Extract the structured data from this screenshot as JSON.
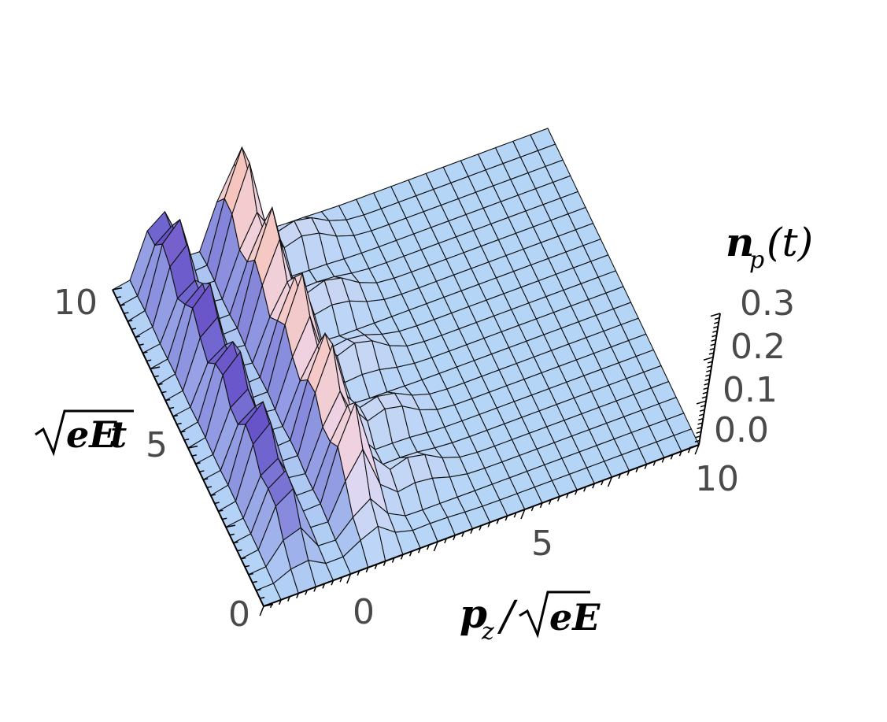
{
  "chart_data": {
    "type": "surface3d",
    "title": "",
    "x_axis": {
      "label": {
        "main": "p",
        "sub": "z",
        "sep": "/",
        "radicand": "eE"
      },
      "range": [
        -2.5,
        10
      ],
      "ticks": [
        0,
        5,
        10
      ]
    },
    "y_axis": {
      "label": {
        "radicand": "eE",
        "tail": "t"
      },
      "range": [
        0,
        10
      ],
      "ticks": [
        0,
        5,
        10
      ]
    },
    "z_axis": {
      "label": {
        "main": "n",
        "sub": "p",
        "tail": "(t)"
      },
      "range": [
        0,
        0.3
      ],
      "ticks": [
        "0.0",
        "0.1",
        "0.2",
        "0.3"
      ]
    },
    "grid_resolution": [
      25,
      20
    ],
    "ridges": [
      {
        "center_p": 0.9,
        "width": 0.55,
        "peak_n": 0.3
      },
      {
        "center_p": -1.2,
        "width": 0.45,
        "peak_n": 0.25
      }
    ],
    "grid": true,
    "colors": {
      "low": "#b5d5f7",
      "mid": "#6450c8",
      "high": "#ffb894",
      "mesh": "#111111"
    }
  }
}
